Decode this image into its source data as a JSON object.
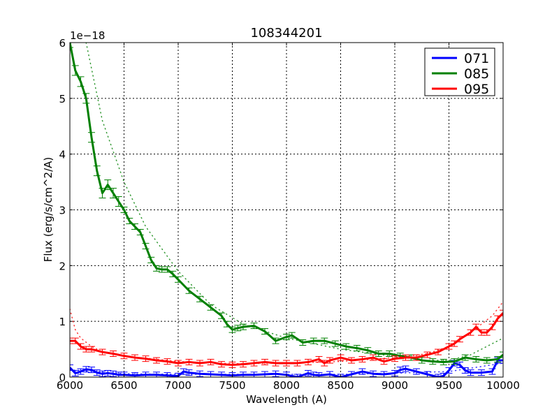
{
  "chart_data": {
    "type": "line",
    "title": "108344201",
    "xlabel": "Wavelength (A)",
    "ylabel": "Flux (erg/s/cm^2/A)",
    "y_offset_label": "1e−18",
    "xlim": [
      6000,
      10000
    ],
    "ylim": [
      0,
      6
    ],
    "y_scale": 1e-18,
    "xticks": [
      6000,
      6500,
      7000,
      7500,
      8000,
      8500,
      9000,
      9500,
      10000
    ],
    "xtick_labels": [
      "6000",
      "6500",
      "7000",
      "7500",
      "8000",
      "8500",
      "9000",
      "9500",
      "10000"
    ],
    "yticks": [
      0,
      1,
      2,
      3,
      4,
      5,
      6
    ],
    "ytick_labels": [
      "0",
      "1",
      "2",
      "3",
      "4",
      "5",
      "6"
    ],
    "grid": true,
    "legend_position": "upper right",
    "legend": [
      "071",
      "085",
      "095"
    ],
    "series": [
      {
        "name": "071",
        "color": "#0000ff",
        "x": [
          6000,
          6050,
          6100,
          6150,
          6200,
          6250,
          6300,
          6350,
          6400,
          6450,
          6500,
          6600,
          6700,
          6800,
          6900,
          7000,
          7050,
          7100,
          7200,
          7300,
          7400,
          7500,
          7600,
          7700,
          7800,
          7900,
          8000,
          8100,
          8200,
          8250,
          8300,
          8400,
          8500,
          8600,
          8700,
          8800,
          8900,
          9000,
          9050,
          9100,
          9200,
          9300,
          9400,
          9450,
          9500,
          9550,
          9600,
          9650,
          9700,
          9800,
          9900,
          9950,
          10000
        ],
        "values": [
          0.17,
          0.07,
          0.1,
          0.14,
          0.13,
          0.08,
          0.06,
          0.07,
          0.06,
          0.04,
          0.04,
          0.03,
          0.04,
          0.04,
          0.03,
          0.02,
          0.1,
          0.08,
          0.06,
          0.05,
          0.04,
          0.03,
          0.04,
          0.04,
          0.05,
          0.06,
          0.04,
          0.0,
          0.07,
          0.04,
          0.03,
          0.05,
          0.0,
          0.05,
          0.1,
          0.06,
          0.05,
          0.07,
          0.13,
          0.15,
          0.1,
          0.05,
          0.0,
          0.02,
          0.12,
          0.25,
          0.22,
          0.12,
          0.08,
          0.08,
          0.1,
          0.3,
          0.3
        ],
        "fit_x": [
          6000,
          6500,
          7000,
          7500,
          8000,
          8500,
          9000,
          9500,
          10000
        ],
        "fit_values": [
          0.13,
          0.06,
          0.05,
          0.05,
          0.05,
          0.05,
          0.07,
          0.1,
          0.25
        ]
      },
      {
        "name": "085",
        "color": "#008000",
        "x": [
          6000,
          6050,
          6100,
          6150,
          6200,
          6250,
          6300,
          6350,
          6400,
          6450,
          6500,
          6550,
          6600,
          6650,
          6700,
          6750,
          6800,
          6850,
          6900,
          6950,
          7000,
          7100,
          7200,
          7300,
          7400,
          7450,
          7500,
          7550,
          7600,
          7700,
          7800,
          7900,
          8000,
          8050,
          8150,
          8250,
          8350,
          8450,
          8550,
          8650,
          8750,
          8850,
          8950,
          9050,
          9150,
          9250,
          9350,
          9450,
          9550,
          9650,
          9750,
          9850,
          9950,
          10000
        ],
        "values": [
          6.0,
          5.5,
          5.3,
          5.0,
          4.3,
          3.7,
          3.3,
          3.45,
          3.3,
          3.15,
          3.0,
          2.8,
          2.7,
          2.6,
          2.35,
          2.1,
          1.95,
          1.93,
          1.93,
          1.85,
          1.75,
          1.55,
          1.4,
          1.25,
          1.1,
          0.95,
          0.85,
          0.88,
          0.9,
          0.92,
          0.82,
          0.65,
          0.72,
          0.75,
          0.62,
          0.65,
          0.65,
          0.6,
          0.55,
          0.52,
          0.48,
          0.42,
          0.42,
          0.38,
          0.35,
          0.3,
          0.28,
          0.27,
          0.28,
          0.35,
          0.32,
          0.3,
          0.32,
          0.4
        ],
        "fit_x": [
          6150,
          6300,
          6500,
          6700,
          7000,
          7300,
          7600,
          8000,
          8500,
          9000,
          9300,
          9500,
          9700,
          10000
        ],
        "fit_values": [
          6.0,
          4.6,
          3.5,
          2.7,
          1.9,
          1.3,
          0.95,
          0.7,
          0.5,
          0.37,
          0.3,
          0.3,
          0.4,
          0.7
        ]
      },
      {
        "name": "095",
        "color": "#ff0000",
        "x": [
          6000,
          6050,
          6100,
          6150,
          6200,
          6300,
          6400,
          6500,
          6600,
          6700,
          6800,
          6900,
          7000,
          7100,
          7200,
          7300,
          7400,
          7500,
          7600,
          7700,
          7800,
          7900,
          8000,
          8100,
          8200,
          8300,
          8350,
          8400,
          8500,
          8600,
          8700,
          8800,
          8900,
          9000,
          9100,
          9200,
          9300,
          9400,
          9500,
          9550,
          9600,
          9700,
          9750,
          9800,
          9850,
          9900,
          9950,
          10000
        ],
        "values": [
          0.65,
          0.65,
          0.55,
          0.5,
          0.5,
          0.45,
          0.42,
          0.38,
          0.35,
          0.33,
          0.3,
          0.28,
          0.25,
          0.27,
          0.25,
          0.27,
          0.23,
          0.22,
          0.23,
          0.25,
          0.27,
          0.25,
          0.25,
          0.25,
          0.27,
          0.32,
          0.25,
          0.3,
          0.35,
          0.3,
          0.32,
          0.35,
          0.28,
          0.33,
          0.35,
          0.35,
          0.4,
          0.45,
          0.55,
          0.6,
          0.68,
          0.8,
          0.9,
          0.8,
          0.8,
          0.9,
          1.05,
          1.15
        ],
        "fit_x": [
          6000,
          6050,
          6100,
          6200,
          6300,
          6500,
          7000,
          7500,
          8000,
          8500,
          9000,
          9300,
          9500,
          9700,
          9900,
          10000
        ],
        "fit_values": [
          1.22,
          0.85,
          0.7,
          0.55,
          0.45,
          0.38,
          0.28,
          0.24,
          0.25,
          0.28,
          0.35,
          0.42,
          0.55,
          0.8,
          1.1,
          1.35
        ]
      }
    ]
  }
}
